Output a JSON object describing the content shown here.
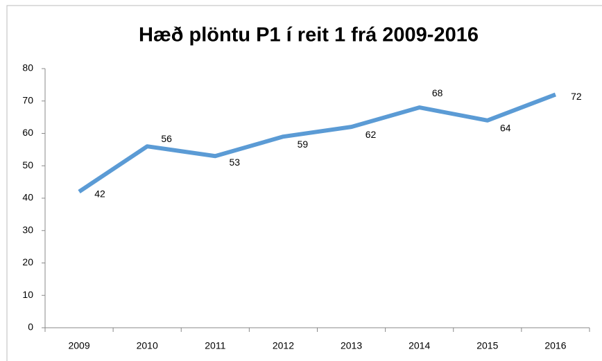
{
  "chart_data": {
    "type": "line",
    "title": "Hæð plöntu P1 í reit 1 frá 2009-2016",
    "categories": [
      "2009",
      "2010",
      "2011",
      "2012",
      "2013",
      "2014",
      "2015",
      "2016"
    ],
    "series": [
      {
        "name": "P1",
        "color": "#5b9bd5",
        "values": [
          42,
          56,
          53,
          59,
          62,
          68,
          64,
          72
        ]
      }
    ],
    "ylim": [
      0,
      80
    ],
    "yticks": [
      0,
      10,
      20,
      30,
      40,
      50,
      60,
      70,
      80
    ],
    "grid": false,
    "legend": false
  }
}
